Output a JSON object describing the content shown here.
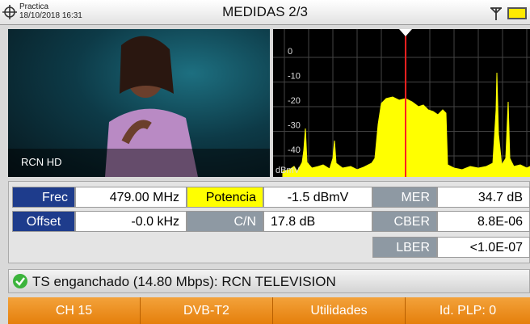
{
  "header": {
    "profile": "Practica",
    "datetime": "18/10/2018 16:31",
    "title": "MEDIDAS 2/3"
  },
  "video": {
    "channel": "RCN HD"
  },
  "spectrum": {
    "yticks": [
      0,
      -10,
      -20,
      -30,
      -40
    ],
    "unit": "dBmV"
  },
  "measurements": {
    "rows": [
      [
        {
          "label": "Frec",
          "value": "479.00 MHz"
        },
        {
          "label": "Potencia",
          "value": "-1.5 dBmV"
        },
        {
          "label": "MER",
          "value": "34.7 dB"
        }
      ],
      [
        {
          "label": "Offset",
          "value": "-0.0 kHz"
        },
        {
          "label": "C/N",
          "value": "17.8 dB"
        },
        {
          "label": "CBER",
          "value": "8.8E-06"
        }
      ],
      [
        {
          "label": "LBER",
          "value": "<1.0E-07"
        }
      ]
    ]
  },
  "status": "TS enganchado (14.80 Mbps): RCN TELEVISION",
  "tabs": [
    "CH 15",
    "DVB-T2",
    "Utilidades",
    "Id. PLP: 0"
  ]
}
